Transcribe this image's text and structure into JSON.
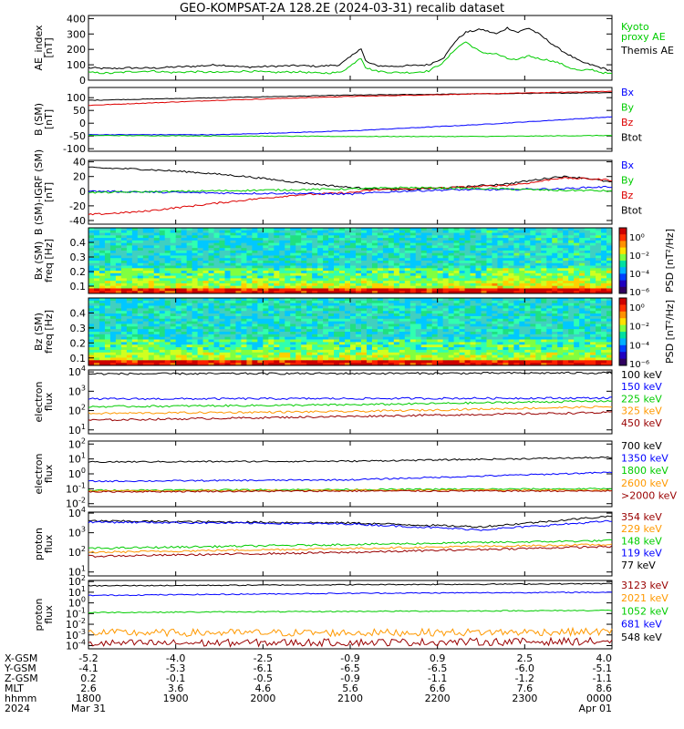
{
  "title": "GEO-KOMPSAT-2A 128.2E (2024-03-31) recalib dataset",
  "colors": {
    "black": "#000000",
    "green": "#00cc00",
    "blue": "#0000ff",
    "red": "#dd0000",
    "orange": "#ff9900",
    "darkred": "#990000",
    "ltgreen": "#33dd33",
    "cyan": "#00aaee",
    "lightblue": "#2266ff",
    "brightgreen": "#00dd00"
  },
  "chart_data": [
    {
      "type": "line",
      "id": "ae",
      "ylabel": "AE_index\n[nT]",
      "yticks": [
        0,
        100,
        200,
        300,
        400
      ],
      "ylim": [
        0,
        420
      ],
      "log": false,
      "legend": [
        {
          "text": "Kyoto\nproxy AE",
          "color": "green"
        },
        {
          "text": "Themis AE",
          "color": "black"
        }
      ],
      "series": [
        {
          "color": "black",
          "x": [
            0,
            0.04,
            0.08,
            0.12,
            0.16,
            0.2,
            0.25,
            0.3,
            0.35,
            0.4,
            0.44,
            0.48,
            0.5,
            0.52,
            0.53,
            0.55,
            0.58,
            0.62,
            0.65,
            0.68,
            0.7,
            0.72,
            0.75,
            0.78,
            0.8,
            0.82,
            0.84,
            0.86,
            0.88,
            0.9,
            0.92,
            0.94,
            0.96,
            0.98,
            1.0
          ],
          "y": [
            80,
            75,
            80,
            78,
            85,
            90,
            100,
            85,
            90,
            95,
            90,
            100,
            150,
            210,
            120,
            95,
            90,
            95,
            100,
            150,
            250,
            310,
            330,
            300,
            340,
            310,
            340,
            300,
            250,
            200,
            160,
            120,
            100,
            80,
            60
          ]
        },
        {
          "color": "green",
          "x": [
            0,
            0.04,
            0.08,
            0.12,
            0.16,
            0.2,
            0.25,
            0.3,
            0.35,
            0.4,
            0.44,
            0.48,
            0.5,
            0.52,
            0.53,
            0.55,
            0.58,
            0.62,
            0.65,
            0.68,
            0.7,
            0.72,
            0.75,
            0.78,
            0.8,
            0.82,
            0.84,
            0.86,
            0.88,
            0.9,
            0.92,
            0.94,
            0.96,
            0.98,
            1.0
          ],
          "y": [
            50,
            45,
            55,
            60,
            50,
            55,
            50,
            60,
            50,
            55,
            45,
            50,
            90,
            150,
            80,
            60,
            50,
            50,
            60,
            120,
            200,
            250,
            180,
            170,
            140,
            130,
            160,
            140,
            130,
            110,
            80,
            60,
            70,
            50,
            40
          ]
        }
      ]
    },
    {
      "type": "line",
      "id": "bsm",
      "ylabel": "B (SM)\n[nT]",
      "yticks": [
        -100,
        -50,
        0,
        50,
        100
      ],
      "ylim": [
        -110,
        140
      ],
      "log": false,
      "legend": [
        {
          "text": "Bx",
          "color": "blue"
        },
        {
          "text": "By",
          "color": "green"
        },
        {
          "text": "Bz",
          "color": "red"
        },
        {
          "text": "Btot",
          "color": "black"
        }
      ],
      "series": [
        {
          "color": "black",
          "x": [
            0,
            0.25,
            0.5,
            0.75,
            1.0
          ],
          "y": [
            90,
            100,
            110,
            115,
            120
          ]
        },
        {
          "color": "red",
          "x": [
            0,
            0.25,
            0.5,
            0.75,
            1.0
          ],
          "y": [
            70,
            90,
            105,
            115,
            125
          ]
        },
        {
          "color": "blue",
          "x": [
            0,
            0.25,
            0.5,
            0.75,
            1.0
          ],
          "y": [
            -45,
            -45,
            -30,
            -5,
            25
          ]
        },
        {
          "color": "green",
          "x": [
            0,
            0.25,
            0.5,
            0.75,
            1.0
          ],
          "y": [
            -48,
            -50,
            -52,
            -52,
            -48
          ]
        }
      ]
    },
    {
      "type": "line",
      "id": "bsmigrf",
      "ylabel": "B (SM)-IGRF (SM)\n[nT]",
      "yticks": [
        -40,
        -20,
        0,
        20,
        40
      ],
      "ylim": [
        -45,
        42
      ],
      "log": false,
      "legend": [
        {
          "text": "Bx",
          "color": "blue"
        },
        {
          "text": "By",
          "color": "green"
        },
        {
          "text": "Bz",
          "color": "red"
        },
        {
          "text": "Btot",
          "color": "black"
        }
      ],
      "series": [
        {
          "color": "black",
          "x": [
            0,
            0.1,
            0.2,
            0.3,
            0.4,
            0.5,
            0.55,
            0.6,
            0.7,
            0.8,
            0.85,
            0.9,
            0.95,
            1.0
          ],
          "y": [
            32,
            30,
            26,
            20,
            12,
            5,
            3,
            2,
            5,
            10,
            15,
            20,
            18,
            12
          ]
        },
        {
          "color": "red",
          "x": [
            0,
            0.1,
            0.2,
            0.3,
            0.4,
            0.5,
            0.55,
            0.6,
            0.7,
            0.8,
            0.85,
            0.9,
            0.95,
            1.0
          ],
          "y": [
            -32,
            -28,
            -20,
            -12,
            -5,
            -2,
            2,
            3,
            5,
            8,
            12,
            18,
            17,
            15
          ]
        },
        {
          "color": "blue",
          "x": [
            0,
            0.1,
            0.2,
            0.3,
            0.4,
            0.5,
            0.55,
            0.6,
            0.7,
            0.8,
            0.85,
            0.9,
            0.95,
            1.0
          ],
          "y": [
            0,
            -1,
            -2,
            -3,
            -3,
            -4,
            -2,
            0,
            2,
            2,
            3,
            3,
            5,
            6
          ]
        },
        {
          "color": "green",
          "x": [
            0,
            0.1,
            0.2,
            0.3,
            0.4,
            0.5,
            0.55,
            0.6,
            0.7,
            0.8,
            0.85,
            0.9,
            0.95,
            1.0
          ],
          "y": [
            -2,
            -1,
            0,
            1,
            2,
            3,
            4,
            5,
            4,
            3,
            2,
            1,
            1,
            0
          ]
        }
      ]
    },
    {
      "type": "heatmap",
      "id": "bxspec",
      "ylabel": "Bx (SM)\nfreq [Hz]",
      "yticks": [
        0.1,
        0.2,
        0.3,
        0.4
      ],
      "ylim": [
        0.05,
        0.5
      ],
      "colorbar": {
        "label": "PSD [nT²/Hz]",
        "ticks": [
          "10⁰",
          "10⁻²",
          "10⁻⁴",
          "10⁻⁶"
        ]
      }
    },
    {
      "type": "heatmap",
      "id": "bzspec",
      "ylabel": "Bz (SM)\nfreq [Hz]",
      "yticks": [
        0.1,
        0.2,
        0.3,
        0.4
      ],
      "ylim": [
        0.05,
        0.5
      ],
      "colorbar": {
        "label": "PSD [nT²/Hz]",
        "ticks": [
          "10⁰",
          "10⁻²",
          "10⁻⁴",
          "10⁻⁶"
        ]
      }
    },
    {
      "type": "line",
      "id": "elow",
      "ylabel": "electron\nflux",
      "yticks_exp": [
        1,
        2,
        3,
        4
      ],
      "ylim_exp": [
        0.8,
        4.1
      ],
      "log": true,
      "legend": [
        {
          "text": "100 keV",
          "color": "black"
        },
        {
          "text": "150 keV",
          "color": "blue"
        },
        {
          "text": "225 keV",
          "color": "green"
        },
        {
          "text": "325 keV",
          "color": "orange"
        },
        {
          "text": "450 keV",
          "color": "darkred"
        }
      ],
      "series": [
        {
          "color": "black",
          "x": [
            0,
            0.5,
            1
          ],
          "y_exp": [
            3.9,
            3.92,
            3.95
          ]
        },
        {
          "color": "blue",
          "x": [
            0,
            0.5,
            1
          ],
          "y_exp": [
            2.6,
            2.62,
            2.65
          ]
        },
        {
          "color": "green",
          "x": [
            0,
            0.5,
            1
          ],
          "y_exp": [
            2.2,
            2.3,
            2.5
          ]
        },
        {
          "color": "orange",
          "x": [
            0,
            0.5,
            1
          ],
          "y_exp": [
            1.85,
            1.95,
            2.2
          ]
        },
        {
          "color": "darkred",
          "x": [
            0,
            0.5,
            1
          ],
          "y_exp": [
            1.5,
            1.7,
            1.9
          ]
        }
      ]
    },
    {
      "type": "line",
      "id": "ehigh",
      "ylabel": "electron\nflux",
      "yticks_exp": [
        -2,
        -1,
        0,
        1,
        2
      ],
      "ylim_exp": [
        -2.2,
        2.2
      ],
      "log": true,
      "legend": [
        {
          "text": "700 keV",
          "color": "black"
        },
        {
          "text": "1350 keV",
          "color": "blue"
        },
        {
          "text": "1800 keV",
          "color": "green"
        },
        {
          "text": "2600 keV",
          "color": "orange"
        },
        {
          "text": ">2000 keV",
          "color": "darkred"
        }
      ],
      "series": [
        {
          "color": "black",
          "x": [
            0,
            0.5,
            1
          ],
          "y_exp": [
            0.8,
            0.85,
            1.1
          ]
        },
        {
          "color": "blue",
          "x": [
            0,
            0.5,
            1
          ],
          "y_exp": [
            -0.5,
            -0.4,
            0.1
          ]
        },
        {
          "color": "green",
          "x": [
            0,
            0.5,
            1
          ],
          "y_exp": [
            -1.1,
            -1.05,
            -1.0
          ]
        },
        {
          "color": "orange",
          "x": [
            0,
            0.5,
            1
          ],
          "y_exp": [
            -1.15,
            -1.1,
            -1.1
          ]
        },
        {
          "color": "darkred",
          "x": [
            0,
            0.5,
            1
          ],
          "y_exp": [
            -1.2,
            -1.15,
            -1.15
          ]
        }
      ]
    },
    {
      "type": "line",
      "id": "plow",
      "ylabel": "proton\nflux",
      "yticks_exp": [
        1,
        2,
        3,
        4
      ],
      "ylim_exp": [
        0.8,
        4.05
      ],
      "log": true,
      "legend": [
        {
          "text": "354 keV",
          "color": "darkred"
        },
        {
          "text": "229 keV",
          "color": "orange"
        },
        {
          "text": "148 keV",
          "color": "green"
        },
        {
          "text": "119 keV",
          "color": "blue"
        },
        {
          "text": "77 keV",
          "color": "black"
        }
      ],
      "series": [
        {
          "color": "black",
          "x": [
            0,
            0.5,
            0.75,
            1
          ],
          "y_exp": [
            3.6,
            3.5,
            3.3,
            3.85
          ]
        },
        {
          "color": "blue",
          "x": [
            0,
            0.5,
            0.75,
            1
          ],
          "y_exp": [
            3.55,
            3.45,
            3.15,
            3.6
          ]
        },
        {
          "color": "green",
          "x": [
            0,
            0.5,
            1
          ],
          "y_exp": [
            2.2,
            2.4,
            2.6
          ]
        },
        {
          "color": "orange",
          "x": [
            0,
            0.5,
            1
          ],
          "y_exp": [
            2.0,
            2.2,
            2.4
          ]
        },
        {
          "color": "darkred",
          "x": [
            0,
            0.5,
            1
          ],
          "y_exp": [
            1.8,
            2.0,
            2.3
          ]
        }
      ]
    },
    {
      "type": "line",
      "id": "phigh",
      "ylabel": "proton\nflux",
      "yticks_exp": [
        -4,
        -3,
        -2,
        -1,
        0,
        1,
        2
      ],
      "ylim_exp": [
        -4.3,
        2.1
      ],
      "log": true,
      "legend": [
        {
          "text": "3123 keV",
          "color": "darkred"
        },
        {
          "text": "2021 keV",
          "color": "orange"
        },
        {
          "text": "1052 keV",
          "color": "green"
        },
        {
          "text": "681 keV",
          "color": "blue"
        },
        {
          "text": "548 keV",
          "color": "black"
        }
      ],
      "series": [
        {
          "color": "black",
          "x": [
            0,
            0.5,
            1
          ],
          "y_exp": [
            1.6,
            1.7,
            1.8
          ]
        },
        {
          "color": "blue",
          "x": [
            0,
            0.5,
            1
          ],
          "y_exp": [
            0.7,
            0.9,
            1.0
          ]
        },
        {
          "color": "green",
          "x": [
            0,
            0.5,
            1
          ],
          "y_exp": [
            -0.9,
            -0.8,
            -0.7
          ]
        },
        {
          "color": "orange",
          "x": [
            0,
            0.5,
            1
          ],
          "y_exp": [
            -2.8,
            -2.8,
            -2.7
          ]
        },
        {
          "color": "darkred",
          "x": [
            0,
            0.5,
            1
          ],
          "y_exp": [
            -3.8,
            -3.7,
            -3.6
          ]
        }
      ]
    }
  ],
  "ephemeris": {
    "row_labels": [
      "X-GSM",
      "Y-GSM",
      "Z-GSM",
      "MLT",
      "hhmm",
      "2024"
    ],
    "columns": [
      [
        "-5.2",
        "-4.1",
        "0.2",
        "2.6",
        "1800",
        "Mar 31"
      ],
      [
        "-4.0",
        "-5.3",
        "-0.1",
        "3.6",
        "1900",
        ""
      ],
      [
        "-2.5",
        "-6.1",
        "-0.5",
        "4.6",
        "2000",
        ""
      ],
      [
        "-0.9",
        "-6.5",
        "-0.9",
        "5.6",
        "2100",
        ""
      ],
      [
        "0.9",
        "-6.5",
        "-1.1",
        "6.6",
        "2200",
        ""
      ],
      [
        "2.5",
        "-6.0",
        "-1.2",
        "7.6",
        "2300",
        ""
      ],
      [
        "4.0",
        "-5.1",
        "-1.1",
        "8.6",
        "0000",
        "Apr 01"
      ]
    ]
  }
}
